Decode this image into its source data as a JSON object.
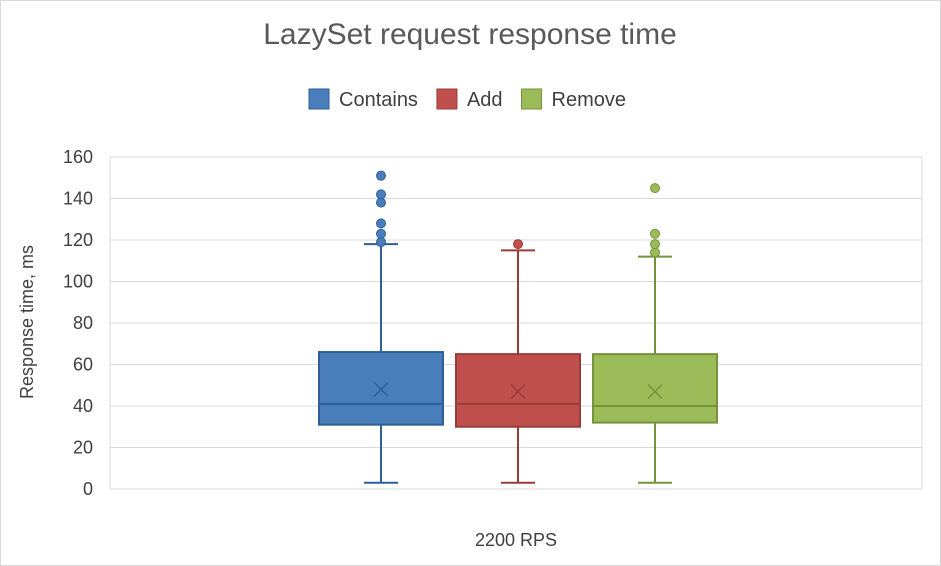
{
  "chart_data": {
    "type": "box",
    "title": "LazySet request response time",
    "xlabel": "",
    "ylabel": "Response time, ms",
    "ylim": [
      0,
      160
    ],
    "yticks": [
      0,
      20,
      40,
      60,
      80,
      100,
      120,
      140,
      160
    ],
    "categories": [
      "2200 RPS"
    ],
    "grid": true,
    "legend_position": "top",
    "series": [
      {
        "name": "Contains",
        "color": "#4a7ebb",
        "edge": "#2e5f99",
        "min": 3,
        "q1": 31,
        "median": 41,
        "mean": 48,
        "q3": 66,
        "max": 118,
        "outliers": [
          119,
          123,
          128,
          138,
          142,
          151
        ]
      },
      {
        "name": "Add",
        "color": "#c0504d",
        "edge": "#993b39",
        "min": 3,
        "q1": 30,
        "median": 41,
        "mean": 47,
        "q3": 65,
        "max": 115,
        "outliers": [
          118
        ]
      },
      {
        "name": "Remove",
        "color": "#9bbb59",
        "edge": "#76923c",
        "min": 3,
        "q1": 32,
        "median": 40,
        "mean": 47,
        "q3": 65,
        "max": 112,
        "outliers": [
          114,
          118,
          123,
          145
        ]
      }
    ]
  }
}
